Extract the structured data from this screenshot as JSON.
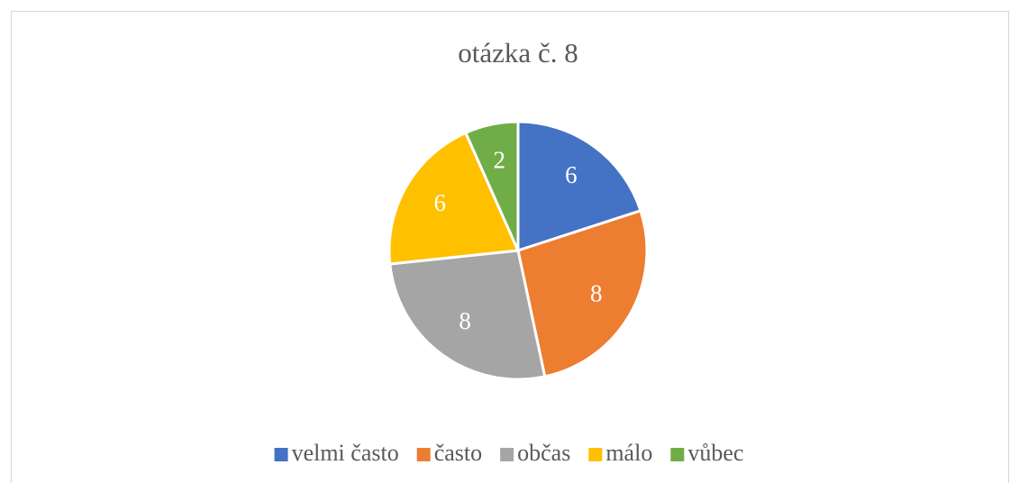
{
  "chart_data": {
    "type": "pie",
    "title": "otázka č. 8",
    "categories": [
      "velmi často",
      "často",
      "občas",
      "málo",
      "vůbec"
    ],
    "values": [
      6,
      8,
      8,
      6,
      2
    ],
    "colors": [
      "#4472c4",
      "#ed7d31",
      "#a5a5a5",
      "#ffc000",
      "#70ad47"
    ],
    "legend": "bottom"
  }
}
